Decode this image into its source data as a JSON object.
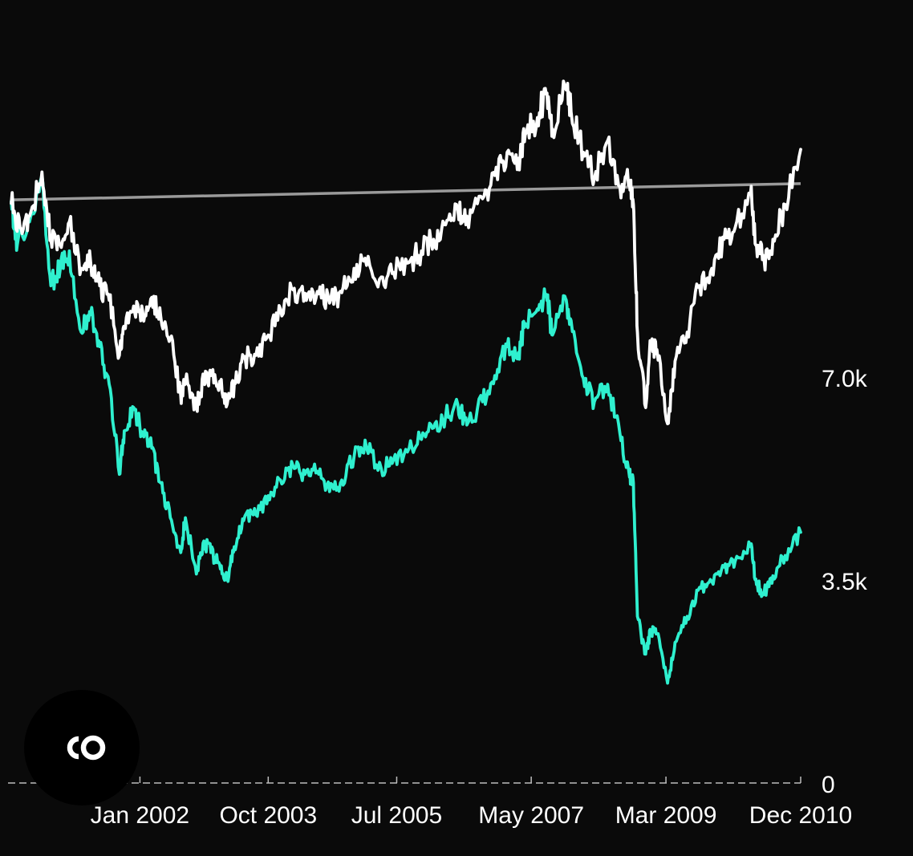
{
  "colors": {
    "background": "#0a0a0a",
    "series_white": "#ffffff",
    "series_teal": "#2ff0cf",
    "reference_line": "#9a9a9a",
    "axis": "#bdbdbd",
    "text": "#ffffff"
  },
  "logo": {
    "icon": "co-logo-icon"
  },
  "chart_data": {
    "type": "line",
    "title": "",
    "xlabel": "",
    "ylabel": "",
    "x_ticks": [
      "Jan 2002",
      "Oct 2003",
      "Jul 2005",
      "May 2007",
      "Mar 2009",
      "Dec 2010"
    ],
    "y_ticks": [
      0,
      3500,
      7000
    ],
    "y_tick_labels": [
      "0",
      "3.5k",
      "7.0k"
    ],
    "ylim": [
      0,
      13000
    ],
    "y_axis_position": "right",
    "grid": false,
    "reference_line": {
      "start": 10080,
      "end": 10360
    },
    "series": [
      {
        "color": "#ffffff",
        "points": [
          [
            "2000-04-01",
            10020
          ],
          [
            "2000-05-15",
            9600
          ],
          [
            "2000-07-01",
            9800
          ],
          [
            "2000-09-01",
            10560
          ],
          [
            "2000-10-15",
            9400
          ],
          [
            "2000-12-01",
            9300
          ],
          [
            "2001-01-15",
            9700
          ],
          [
            "2001-03-15",
            8900
          ],
          [
            "2001-05-01",
            9000
          ],
          [
            "2001-06-15",
            8600
          ],
          [
            "2001-08-01",
            8350
          ],
          [
            "2001-09-21",
            7400
          ],
          [
            "2001-10-15",
            7900
          ],
          [
            "2001-12-01",
            8250
          ],
          [
            "2002-01-15",
            8150
          ],
          [
            "2002-03-01",
            8400
          ],
          [
            "2002-04-15",
            8050
          ],
          [
            "2002-06-01",
            7700
          ],
          [
            "2002-07-23",
            6700
          ],
          [
            "2002-08-15",
            6950
          ],
          [
            "2002-10-09",
            6520
          ],
          [
            "2002-11-15",
            6950
          ],
          [
            "2002-12-20",
            7050
          ],
          [
            "2003-02-01",
            6950
          ],
          [
            "2003-03-11",
            6560
          ],
          [
            "2003-04-15",
            6900
          ],
          [
            "2003-06-01",
            7350
          ],
          [
            "2003-08-01",
            7400
          ],
          [
            "2003-10-01",
            7750
          ],
          [
            "2003-12-01",
            8200
          ],
          [
            "2004-02-01",
            8530
          ],
          [
            "2004-04-01",
            8470
          ],
          [
            "2004-06-01",
            8500
          ],
          [
            "2004-08-01",
            8300
          ],
          [
            "2004-10-01",
            8480
          ],
          [
            "2004-12-01",
            8900
          ],
          [
            "2005-02-01",
            8950
          ],
          [
            "2005-04-15",
            8750
          ],
          [
            "2005-06-15",
            8830
          ],
          [
            "2005-09-01",
            9000
          ],
          [
            "2005-11-01",
            9200
          ],
          [
            "2006-01-01",
            9400
          ],
          [
            "2006-03-01",
            9650
          ],
          [
            "2006-05-01",
            9900
          ],
          [
            "2006-06-15",
            9800
          ],
          [
            "2006-09-01",
            10100
          ],
          [
            "2006-11-01",
            10500
          ],
          [
            "2007-01-01",
            10900
          ],
          [
            "2007-02-27",
            10800
          ],
          [
            "2007-04-01",
            11200
          ],
          [
            "2007-06-01",
            11500
          ],
          [
            "2007-07-15",
            11900
          ],
          [
            "2007-08-15",
            11300
          ],
          [
            "2007-10-15",
            12050
          ],
          [
            "2007-11-15",
            11600
          ],
          [
            "2008-01-15",
            10900
          ],
          [
            "2008-03-10",
            10450
          ],
          [
            "2008-05-15",
            11100
          ],
          [
            "2008-07-15",
            10300
          ],
          [
            "2008-09-01",
            10400
          ],
          [
            "2008-09-20",
            10000
          ],
          [
            "2008-10-10",
            7800
          ],
          [
            "2008-11-20",
            6500
          ],
          [
            "2008-12-15",
            7600
          ],
          [
            "2009-01-15",
            7500
          ],
          [
            "2009-03-09",
            6220
          ],
          [
            "2009-04-15",
            7300
          ],
          [
            "2009-06-15",
            7800
          ],
          [
            "2009-08-15",
            8600
          ],
          [
            "2009-10-15",
            8900
          ],
          [
            "2009-12-15",
            9400
          ],
          [
            "2010-02-08",
            9600
          ],
          [
            "2010-04-26",
            10200
          ],
          [
            "2010-05-25",
            9300
          ],
          [
            "2010-07-02",
            9050
          ],
          [
            "2010-08-15",
            9400
          ],
          [
            "2010-10-15",
            10000
          ],
          [
            "2010-12-31",
            10950
          ]
        ]
      },
      {
        "color": "#2ff0cf",
        "points": [
          [
            "2000-04-01",
            10050
          ],
          [
            "2000-05-01",
            9300
          ],
          [
            "2000-07-01",
            9700
          ],
          [
            "2000-09-01",
            10500
          ],
          [
            "2000-10-15",
            8600
          ],
          [
            "2000-12-01",
            8900
          ],
          [
            "2001-01-15",
            9200
          ],
          [
            "2001-03-15",
            7800
          ],
          [
            "2001-05-01",
            8100
          ],
          [
            "2001-06-15",
            7550
          ],
          [
            "2001-08-01",
            6900
          ],
          [
            "2001-09-21",
            5350
          ],
          [
            "2001-10-15",
            6100
          ],
          [
            "2001-12-01",
            6500
          ],
          [
            "2002-01-15",
            6050
          ],
          [
            "2002-03-01",
            5800
          ],
          [
            "2002-04-15",
            5200
          ],
          [
            "2002-06-01",
            4600
          ],
          [
            "2002-07-23",
            4000
          ],
          [
            "2002-08-15",
            4600
          ],
          [
            "2002-10-09",
            3630
          ],
          [
            "2002-11-15",
            4200
          ],
          [
            "2002-12-20",
            4000
          ],
          [
            "2003-02-01",
            3800
          ],
          [
            "2003-03-11",
            3550
          ],
          [
            "2003-04-15",
            4100
          ],
          [
            "2003-06-01",
            4550
          ],
          [
            "2003-08-01",
            4650
          ],
          [
            "2003-10-01",
            4980
          ],
          [
            "2003-12-01",
            5250
          ],
          [
            "2004-02-01",
            5500
          ],
          [
            "2004-04-01",
            5350
          ],
          [
            "2004-06-01",
            5400
          ],
          [
            "2004-08-01",
            5050
          ],
          [
            "2004-10-01",
            5250
          ],
          [
            "2004-12-01",
            5650
          ],
          [
            "2005-02-01",
            5800
          ],
          [
            "2005-04-15",
            5450
          ],
          [
            "2005-06-15",
            5600
          ],
          [
            "2005-09-01",
            5800
          ],
          [
            "2005-11-01",
            5950
          ],
          [
            "2006-01-01",
            6150
          ],
          [
            "2006-03-01",
            6350
          ],
          [
            "2006-05-01",
            6550
          ],
          [
            "2006-06-15",
            6200
          ],
          [
            "2006-09-01",
            6600
          ],
          [
            "2006-11-01",
            7050
          ],
          [
            "2007-01-01",
            7550
          ],
          [
            "2007-02-27",
            7450
          ],
          [
            "2007-04-01",
            7950
          ],
          [
            "2007-06-01",
            8200
          ],
          [
            "2007-07-15",
            8450
          ],
          [
            "2007-08-15",
            7750
          ],
          [
            "2007-10-15",
            8420
          ],
          [
            "2007-11-15",
            8000
          ],
          [
            "2008-01-15",
            7000
          ],
          [
            "2008-03-10",
            6600
          ],
          [
            "2008-05-15",
            6900
          ],
          [
            "2008-07-15",
            6050
          ],
          [
            "2008-09-01",
            5300
          ],
          [
            "2008-09-20",
            5200
          ],
          [
            "2008-10-10",
            2900
          ],
          [
            "2008-11-20",
            2250
          ],
          [
            "2008-12-15",
            2650
          ],
          [
            "2009-01-15",
            2600
          ],
          [
            "2009-03-09",
            1750
          ],
          [
            "2009-04-15",
            2450
          ],
          [
            "2009-06-15",
            2900
          ],
          [
            "2009-08-15",
            3400
          ],
          [
            "2009-10-15",
            3500
          ],
          [
            "2009-12-15",
            3750
          ],
          [
            "2010-02-08",
            3850
          ],
          [
            "2010-04-26",
            4100
          ],
          [
            "2010-05-25",
            3450
          ],
          [
            "2010-07-02",
            3300
          ],
          [
            "2010-08-15",
            3600
          ],
          [
            "2010-10-15",
            3950
          ],
          [
            "2010-12-31",
            4350
          ]
        ]
      }
    ]
  }
}
